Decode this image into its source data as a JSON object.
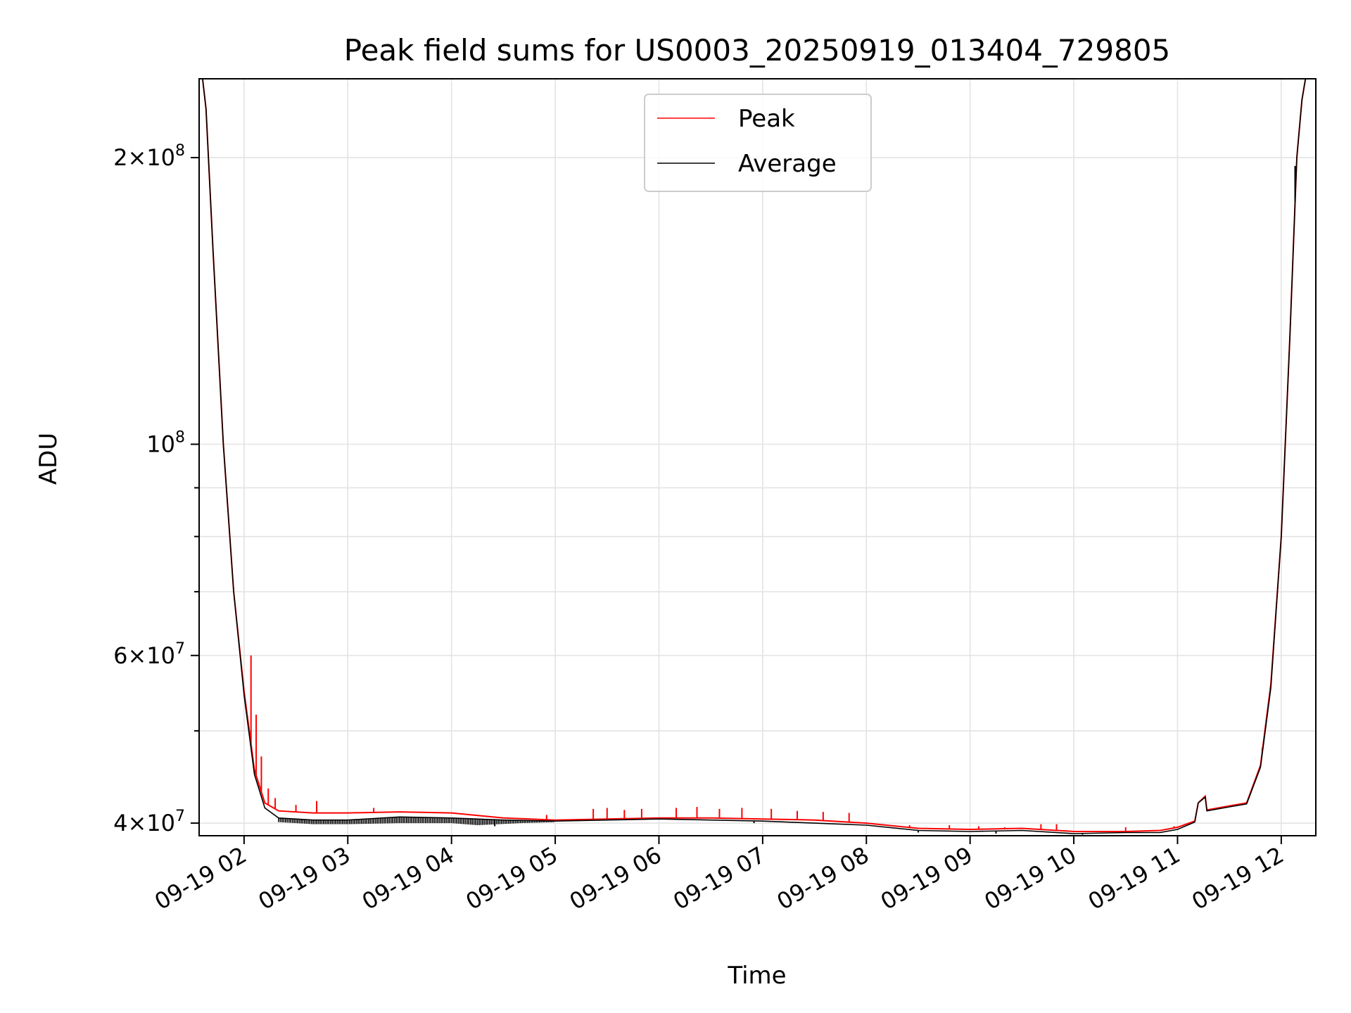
{
  "chart_data": {
    "type": "line",
    "title": "Peak field sums for US0003_20250919_013404_729805",
    "xlabel": "Time",
    "ylabel": "ADU",
    "yscale": "log",
    "xlim": [
      "09-19 01:34",
      "09-19 12:20"
    ],
    "ylim": [
      38800000,
      242000000
    ],
    "grid": true,
    "legend_position": "top-center",
    "x_ticks": [
      {
        "value": "09-19 02:00",
        "label": "09-19 02"
      },
      {
        "value": "09-19 03:00",
        "label": "09-19 03"
      },
      {
        "value": "09-19 04:00",
        "label": "09-19 04"
      },
      {
        "value": "09-19 05:00",
        "label": "09-19 05"
      },
      {
        "value": "09-19 06:00",
        "label": "09-19 06"
      },
      {
        "value": "09-19 07:00",
        "label": "09-19 07"
      },
      {
        "value": "09-19 08:00",
        "label": "09-19 08"
      },
      {
        "value": "09-19 09:00",
        "label": "09-19 09"
      },
      {
        "value": "09-19 10:00",
        "label": "09-19 10"
      },
      {
        "value": "09-19 11:00",
        "label": "09-19 11"
      },
      {
        "value": "09-19 12:00",
        "label": "09-19 12"
      }
    ],
    "y_ticks_major": [
      {
        "value": 40000000,
        "base": "4",
        "exp": "7"
      },
      {
        "value": 60000000,
        "base": "6",
        "exp": "7"
      },
      {
        "value": 100000000,
        "base": "",
        "exp": "8"
      },
      {
        "value": 200000000,
        "base": "2",
        "exp": "8"
      }
    ],
    "y_ticks_minor": [
      50000000,
      70000000,
      80000000,
      90000000
    ],
    "series": [
      {
        "name": "Peak",
        "color": "#ff0000",
        "points": [
          [
            "09-19 01:34",
            242000000
          ],
          [
            "09-19 01:36",
            242000000
          ],
          [
            "09-19 01:38",
            225000000
          ],
          [
            "09-19 01:42",
            160000000
          ],
          [
            "09-19 01:48",
            100000000
          ],
          [
            "09-19 01:54",
            70000000
          ],
          [
            "09-19 02:00",
            55000000
          ],
          [
            "09-19 02:06",
            45500000
          ],
          [
            "09-19 02:12",
            42000000
          ],
          [
            "09-19 02:20",
            41200000
          ],
          [
            "09-19 02:40",
            41000000
          ],
          [
            "09-19 03:00",
            41000000
          ],
          [
            "09-19 03:30",
            41100000
          ],
          [
            "09-19 04:00",
            41000000
          ],
          [
            "09-19 04:30",
            40500000
          ],
          [
            "09-19 05:00",
            40300000
          ],
          [
            "09-19 05:30",
            40400000
          ],
          [
            "09-19 06:00",
            40500000
          ],
          [
            "09-19 06:30",
            40500000
          ],
          [
            "09-19 07:00",
            40400000
          ],
          [
            "09-19 07:30",
            40300000
          ],
          [
            "09-19 08:00",
            40000000
          ],
          [
            "09-19 08:30",
            39500000
          ],
          [
            "09-19 09:00",
            39400000
          ],
          [
            "09-19 09:30",
            39500000
          ],
          [
            "09-19 10:00",
            39200000
          ],
          [
            "09-19 10:30",
            39200000
          ],
          [
            "09-19 10:50",
            39300000
          ],
          [
            "09-19 11:00",
            39600000
          ],
          [
            "09-19 11:10",
            40200000
          ],
          [
            "09-19 11:12",
            42000000
          ],
          [
            "09-19 11:16",
            42700000
          ],
          [
            "09-19 11:17",
            41300000
          ],
          [
            "09-19 11:30",
            41700000
          ],
          [
            "09-19 11:40",
            42000000
          ],
          [
            "09-19 11:48",
            46000000
          ],
          [
            "09-19 11:54",
            56000000
          ],
          [
            "09-19 12:00",
            80000000
          ],
          [
            "09-19 12:05",
            130000000
          ],
          [
            "09-19 12:09",
            200000000
          ],
          [
            "09-19 12:12",
            230000000
          ],
          [
            "09-19 12:14",
            242000000
          ],
          [
            "09-19 12:20",
            242000000
          ]
        ],
        "spikes": [
          [
            "09-19 02:04",
            60000000
          ],
          [
            "09-19 02:07",
            52000000
          ],
          [
            "09-19 02:10",
            47000000
          ],
          [
            "09-19 02:14",
            43500000
          ],
          [
            "09-19 02:18",
            42500000
          ],
          [
            "09-19 02:30",
            41800000
          ],
          [
            "09-19 02:42",
            42200000
          ],
          [
            "09-19 03:15",
            41500000
          ],
          [
            "09-19 04:55",
            40800000
          ],
          [
            "09-19 05:22",
            41400000
          ],
          [
            "09-19 05:30",
            41500000
          ],
          [
            "09-19 05:40",
            41300000
          ],
          [
            "09-19 05:50",
            41400000
          ],
          [
            "09-19 06:10",
            41500000
          ],
          [
            "09-19 06:22",
            41600000
          ],
          [
            "09-19 06:35",
            41400000
          ],
          [
            "09-19 06:48",
            41500000
          ],
          [
            "09-19 07:05",
            41400000
          ],
          [
            "09-19 07:20",
            41200000
          ],
          [
            "09-19 07:35",
            41100000
          ],
          [
            "09-19 07:50",
            41000000
          ],
          [
            "09-19 08:25",
            39800000
          ],
          [
            "09-19 08:48",
            39800000
          ],
          [
            "09-19 09:05",
            39700000
          ],
          [
            "09-19 09:20",
            39600000
          ],
          [
            "09-19 09:41",
            39900000
          ],
          [
            "09-19 09:50",
            39900000
          ],
          [
            "09-19 10:30",
            39600000
          ],
          [
            "09-19 10:58",
            39700000
          ],
          [
            "09-19 11:05",
            39900000
          ],
          [
            "09-19 11:49",
            48000000
          ],
          [
            "09-19 11:51",
            50500000
          ]
        ]
      },
      {
        "name": "Average",
        "color": "#000000",
        "points": [
          [
            "09-19 01:34",
            242000000
          ],
          [
            "09-19 01:36",
            242000000
          ],
          [
            "09-19 01:38",
            225000000
          ],
          [
            "09-19 01:42",
            160000000
          ],
          [
            "09-19 01:48",
            100000000
          ],
          [
            "09-19 01:54",
            70000000
          ],
          [
            "09-19 02:00",
            54500000
          ],
          [
            "09-19 02:06",
            45000000
          ],
          [
            "09-19 02:12",
            41500000
          ],
          [
            "09-19 02:20",
            40500000
          ],
          [
            "09-19 02:40",
            40300000
          ],
          [
            "09-19 03:00",
            40300000
          ],
          [
            "09-19 03:30",
            40600000
          ],
          [
            "09-19 04:00",
            40500000
          ],
          [
            "09-19 04:30",
            40300000
          ],
          [
            "09-19 05:00",
            40200000
          ],
          [
            "09-19 05:30",
            40300000
          ],
          [
            "09-19 06:00",
            40400000
          ],
          [
            "09-19 06:30",
            40300000
          ],
          [
            "09-19 07:00",
            40200000
          ],
          [
            "09-19 07:30",
            40000000
          ],
          [
            "09-19 08:00",
            39800000
          ],
          [
            "09-19 08:30",
            39300000
          ],
          [
            "09-19 09:00",
            39200000
          ],
          [
            "09-19 09:30",
            39300000
          ],
          [
            "09-19 10:00",
            39000000
          ],
          [
            "09-19 10:30",
            39100000
          ],
          [
            "09-19 10:50",
            39100000
          ],
          [
            "09-19 11:00",
            39400000
          ],
          [
            "09-19 11:10",
            40100000
          ],
          [
            "09-19 11:12",
            42000000
          ],
          [
            "09-19 11:16",
            42600000
          ],
          [
            "09-19 11:17",
            41200000
          ],
          [
            "09-19 11:30",
            41600000
          ],
          [
            "09-19 11:40",
            41900000
          ],
          [
            "09-19 11:48",
            45800000
          ],
          [
            "09-19 11:54",
            55500000
          ],
          [
            "09-19 12:00",
            80000000
          ],
          [
            "09-19 12:05",
            130000000
          ],
          [
            "09-19 12:09",
            200000000
          ],
          [
            "09-19 12:12",
            230000000
          ],
          [
            "09-19 12:14",
            242000000
          ],
          [
            "09-19 12:20",
            242000000
          ]
        ],
        "noise_band": [
          [
            "09-19 02:20",
            40100000
          ],
          [
            "09-19 02:40",
            39900000
          ],
          [
            "09-19 03:00",
            39900000
          ],
          [
            "09-19 03:30",
            40000000
          ],
          [
            "09-19 04:00",
            40000000
          ],
          [
            "09-19 04:15",
            39800000
          ],
          [
            "09-19 04:40",
            40000000
          ],
          [
            "09-19 05:00",
            40100000
          ]
        ],
        "dips": [
          [
            "09-19 04:25",
            39700000
          ],
          [
            "09-19 06:55",
            40000000
          ],
          [
            "09-19 08:30",
            39100000
          ],
          [
            "09-19 09:15",
            39000000
          ],
          [
            "09-19 10:05",
            38900000
          ],
          [
            "09-19 12:08",
            196000000
          ]
        ]
      }
    ]
  }
}
